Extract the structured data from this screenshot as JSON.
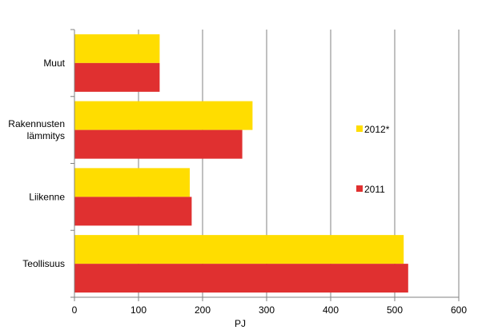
{
  "chart_data": {
    "type": "bar",
    "orientation": "horizontal",
    "categories": [
      [
        "Muut"
      ],
      [
        "Rakennusten",
        "lämmitys"
      ],
      [
        "Liikenne"
      ],
      [
        "Teollisuus"
      ]
    ],
    "series": [
      {
        "name": "2012*",
        "color": "#FFDD00",
        "values": [
          133,
          278,
          180,
          514
        ]
      },
      {
        "name": "2011",
        "color": "#E03030",
        "values": [
          133,
          262,
          183,
          521
        ]
      }
    ],
    "xlabel": "PJ",
    "xlim": [
      0,
      600
    ],
    "xticks": [
      "0",
      "100",
      "200",
      "300",
      "400",
      "500",
      "600"
    ],
    "grid": "vertical",
    "legend_position": "right"
  }
}
